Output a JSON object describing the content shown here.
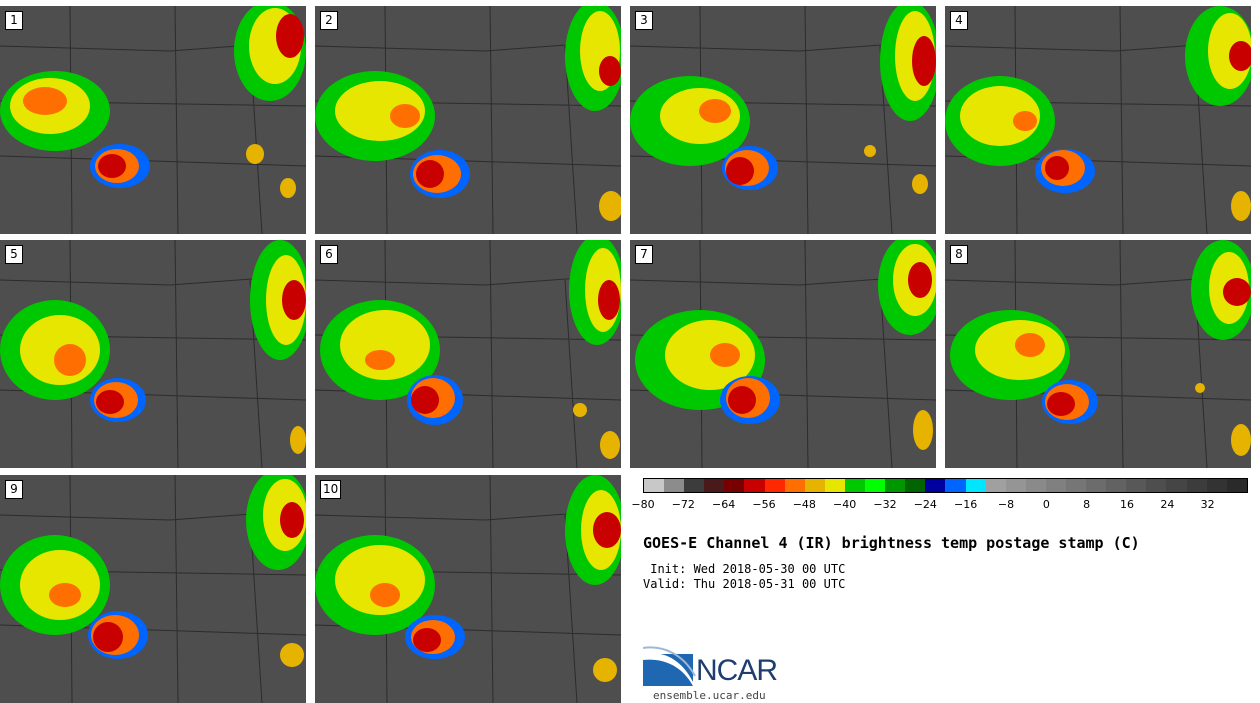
{
  "panels": [
    {
      "label": "1"
    },
    {
      "label": "2"
    },
    {
      "label": "3"
    },
    {
      "label": "4"
    },
    {
      "label": "5"
    },
    {
      "label": "6"
    },
    {
      "label": "7"
    },
    {
      "label": "8"
    },
    {
      "label": "9"
    },
    {
      "label": "10"
    }
  ],
  "colorbar": {
    "colors": [
      "#c8c8c8",
      "#8c8c8c",
      "#3c3c3c",
      "#4a1a1a",
      "#780000",
      "#c80000",
      "#ff2800",
      "#ff6e00",
      "#e6b400",
      "#e6e600",
      "#00c800",
      "#00ff00",
      "#009600",
      "#006400",
      "#0000a0",
      "#0064ff",
      "#00e6ff",
      "#a0a0a0",
      "#959595",
      "#8a8a8a",
      "#808080",
      "#767676",
      "#6c6c6c",
      "#626262",
      "#585858",
      "#4e4e4e",
      "#454545",
      "#3c3c3c",
      "#333333",
      "#2a2a2a"
    ],
    "ticks": [
      "−80",
      "−72",
      "−64",
      "−56",
      "−48",
      "−40",
      "−32",
      "−24",
      "−16",
      "−8",
      "0",
      "8",
      "16",
      "24",
      "32"
    ]
  },
  "title": "GOES-E Channel 4 (IR) brightness temp postage stamp (C)",
  "init": " Init: Wed 2018-05-30 00 UTC",
  "valid": "Valid: Thu 2018-05-31 00 UTC",
  "logo": {
    "name": "NCAR",
    "site": "ensemble.ucar.edu"
  }
}
